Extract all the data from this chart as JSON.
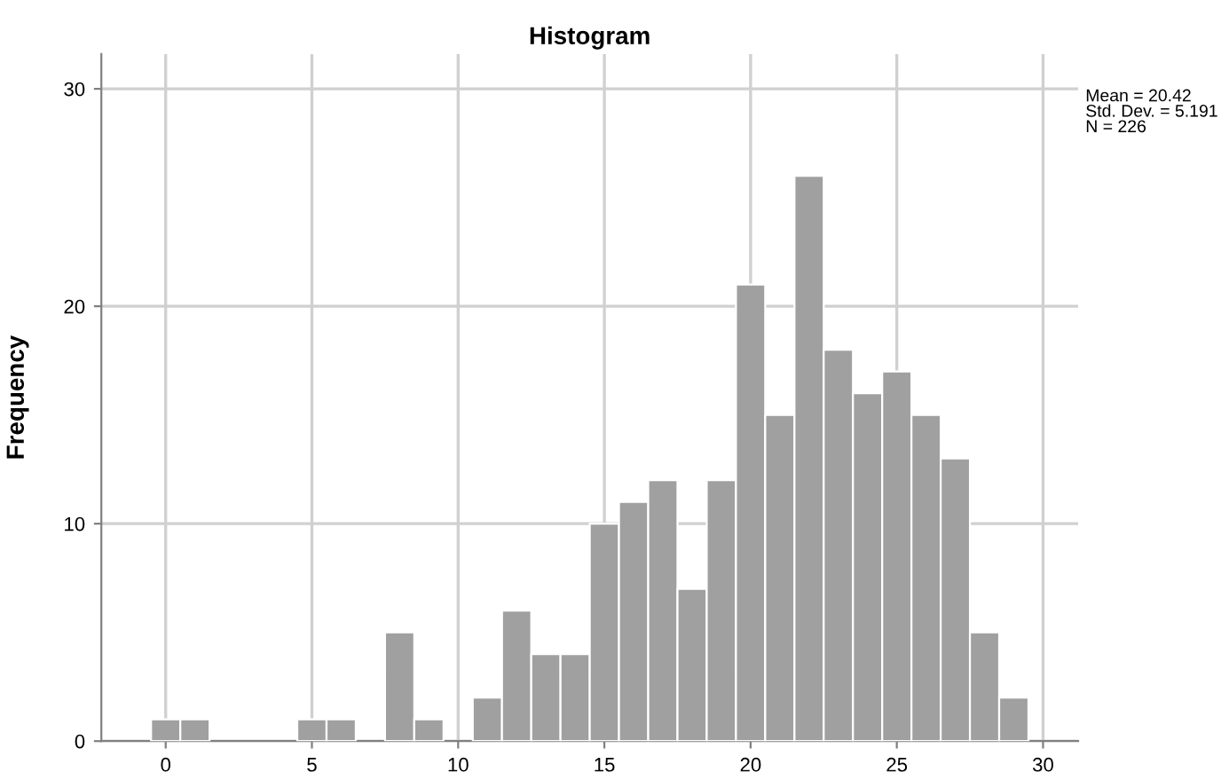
{
  "chart_data": {
    "type": "histogram",
    "title": "Histogram",
    "ylabel": "Frequency",
    "bins": [
      -0.5,
      0.5,
      1.5,
      2.5,
      3.5,
      4.5,
      5.5,
      6.5,
      7.5,
      8.5,
      9.5,
      10.5,
      11.5,
      12.5,
      13.5,
      14.5,
      15.5,
      16.5,
      17.5,
      18.5,
      19.5,
      20.5,
      21.5,
      22.5,
      23.5,
      24.5,
      25.5,
      26.5,
      27.5,
      28.5,
      29.5
    ],
    "values": [
      1,
      1,
      0,
      0,
      0,
      1,
      1,
      0,
      5,
      1,
      0,
      2,
      6,
      4,
      4,
      10,
      11,
      12,
      7,
      12,
      21,
      15,
      26,
      18,
      16,
      17,
      15,
      13,
      5,
      2
    ],
    "color": "#a0a0a0",
    "xlim": [
      -2.2,
      31.2
    ],
    "xticks": [
      0,
      5,
      10,
      15,
      20,
      25,
      30
    ],
    "ylim": [
      0,
      31.6
    ],
    "yticks": [
      0,
      10,
      20,
      30
    ],
    "grid": true,
    "annotations": [
      "Mean = 20.42\nStd. Dev. = 5.191\nN = 226"
    ]
  }
}
